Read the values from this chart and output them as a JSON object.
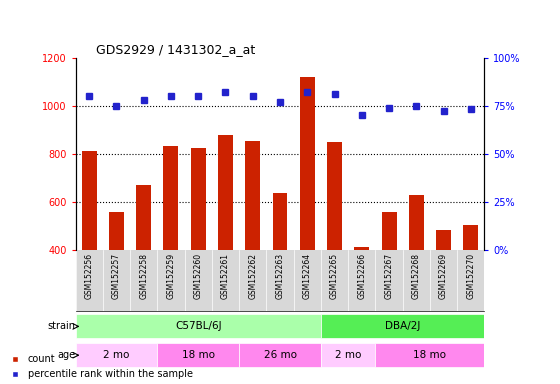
{
  "title": "GDS2929 / 1431302_a_at",
  "samples": [
    "GSM152256",
    "GSM152257",
    "GSM152258",
    "GSM152259",
    "GSM152260",
    "GSM152261",
    "GSM152262",
    "GSM152263",
    "GSM152264",
    "GSM152265",
    "GSM152266",
    "GSM152267",
    "GSM152268",
    "GSM152269",
    "GSM152270"
  ],
  "counts": [
    810,
    557,
    670,
    833,
    822,
    878,
    852,
    635,
    1120,
    850,
    410,
    557,
    628,
    483,
    503
  ],
  "pct_ranks": [
    80,
    75,
    78,
    80,
    80,
    82,
    80,
    77,
    82,
    81,
    70,
    74,
    75,
    72,
    73
  ],
  "ylim_left": [
    400,
    1200
  ],
  "ylim_right": [
    0,
    100
  ],
  "yticks_left": [
    400,
    600,
    800,
    1000,
    1200
  ],
  "yticks_right": [
    0,
    25,
    50,
    75,
    100
  ],
  "bar_color": "#CC2200",
  "dot_color": "#2222CC",
  "strain_groups": [
    {
      "label": "C57BL/6J",
      "start": 0,
      "end": 9,
      "color": "#AAFFAA"
    },
    {
      "label": "DBA/2J",
      "start": 9,
      "end": 15,
      "color": "#55EE55"
    }
  ],
  "age_groups": [
    {
      "label": "2 mo",
      "start": 0,
      "end": 3,
      "color": "#FFCCFF"
    },
    {
      "label": "18 mo",
      "start": 3,
      "end": 6,
      "color": "#FF88EE"
    },
    {
      "label": "26 mo",
      "start": 6,
      "end": 9,
      "color": "#FF88EE"
    },
    {
      "label": "2 mo",
      "start": 9,
      "end": 11,
      "color": "#FFCCFF"
    },
    {
      "label": "18 mo",
      "start": 11,
      "end": 15,
      "color": "#FF88EE"
    }
  ],
  "legend_count_label": "count",
  "legend_pct_label": "percentile rank within the sample",
  "bg_color": "#FFFFFF",
  "plot_bg": "#FFFFFF",
  "grid_dotted_color": "#555555"
}
